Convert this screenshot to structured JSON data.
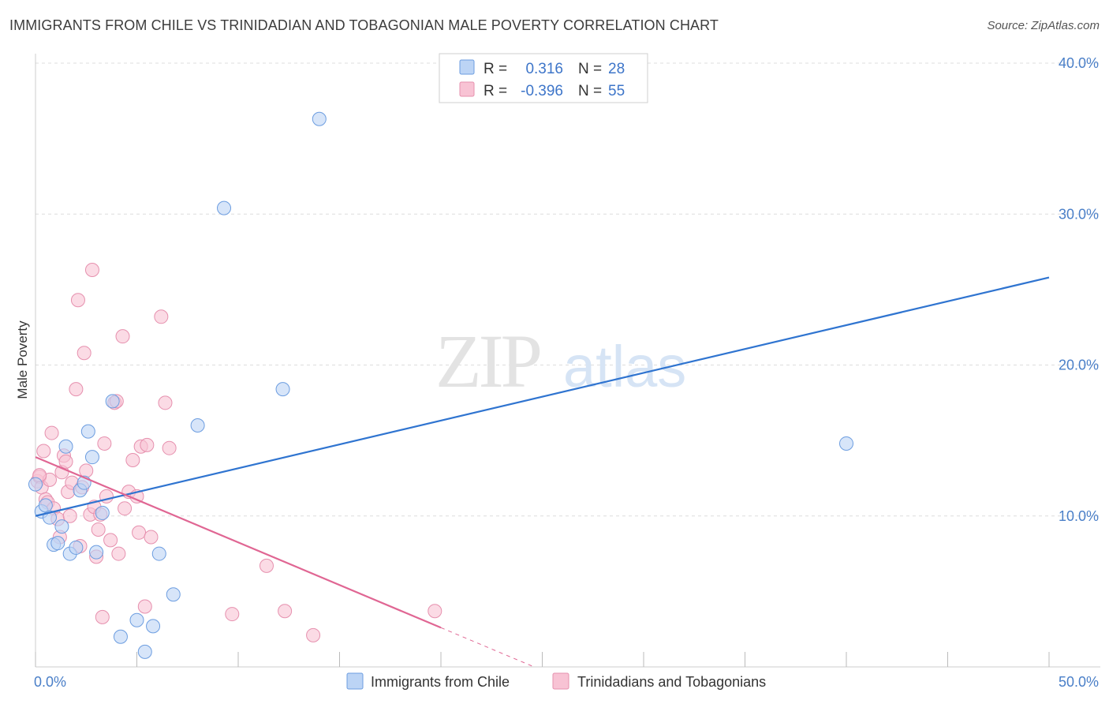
{
  "title": "IMMIGRANTS FROM CHILE VS TRINIDADIAN AND TOBAGONIAN MALE POVERTY CORRELATION CHART",
  "source": "Source: ZipAtlas.com",
  "watermark": {
    "zip": "ZIP",
    "atlas": "atlas"
  },
  "colors": {
    "blue_fill": "#bcd4f5",
    "blue_stroke": "#6c9de0",
    "blue_line": "#2f74d0",
    "pink_fill": "#f8c3d4",
    "pink_stroke": "#e690ae",
    "pink_line": "#e06693",
    "grid": "#dddddd",
    "axis_text": "#4a7fc8"
  },
  "chart_data": {
    "type": "scatter",
    "title": "IMMIGRANTS FROM CHILE VS TRINIDADIAN AND TOBAGONIAN MALE POVERTY CORRELATION CHART",
    "xlabel": "",
    "ylabel": "Male Poverty",
    "xlim": [
      0,
      50
    ],
    "ylim": [
      0,
      40
    ],
    "x_ticks": [
      {
        "value": 0,
        "label": "0.0%"
      },
      {
        "value": 50,
        "label": "50.0%"
      }
    ],
    "x_minor_ticks": [
      0,
      5,
      10,
      15,
      20,
      25,
      30,
      35,
      40,
      45,
      50
    ],
    "y_ticks": [
      {
        "value": 10,
        "label": "10.0%"
      },
      {
        "value": 20,
        "label": "20.0%"
      },
      {
        "value": 30,
        "label": "30.0%"
      },
      {
        "value": 40,
        "label": "40.0%"
      }
    ],
    "stats_box": [
      {
        "r_label": "R =",
        "r_value": "0.316",
        "n_label": "N =",
        "n_value": "28"
      },
      {
        "r_label": "R =",
        "r_value": "-0.396",
        "n_label": "N =",
        "n_value": "55"
      }
    ],
    "series": [
      {
        "name": "Immigrants from Chile",
        "color": "blue",
        "trend": {
          "x0": 0,
          "y0": 10.0,
          "x1": 50,
          "y1": 25.8,
          "dash_from_x": null
        },
        "points": [
          [
            0.0,
            12.1
          ],
          [
            0.3,
            10.3
          ],
          [
            0.5,
            10.7
          ],
          [
            0.7,
            9.9
          ],
          [
            0.9,
            8.1
          ],
          [
            1.1,
            8.2
          ],
          [
            1.3,
            9.3
          ],
          [
            1.5,
            14.6
          ],
          [
            1.7,
            7.5
          ],
          [
            2.0,
            7.9
          ],
          [
            2.2,
            11.7
          ],
          [
            2.4,
            12.2
          ],
          [
            2.6,
            15.6
          ],
          [
            2.8,
            13.9
          ],
          [
            3.0,
            7.6
          ],
          [
            3.3,
            10.2
          ],
          [
            3.8,
            17.6
          ],
          [
            4.2,
            2.0
          ],
          [
            5.0,
            3.1
          ],
          [
            5.4,
            1.0
          ],
          [
            5.8,
            2.7
          ],
          [
            6.1,
            7.5
          ],
          [
            6.8,
            4.8
          ],
          [
            8.0,
            16.0
          ],
          [
            9.3,
            30.4
          ],
          [
            12.2,
            18.4
          ],
          [
            14.0,
            36.3
          ],
          [
            40.0,
            14.8
          ]
        ]
      },
      {
        "name": "Trinidadians and Tobagonians",
        "color": "pink",
        "trend": {
          "x0": 0,
          "y0": 13.9,
          "x1": 20,
          "y1": 2.6,
          "dash_to_x": 24.6,
          "dash_to_y": 0.0
        },
        "points": [
          [
            0.1,
            12.3
          ],
          [
            0.2,
            12.6
          ],
          [
            0.3,
            11.9
          ],
          [
            0.4,
            14.3
          ],
          [
            0.5,
            11.1
          ],
          [
            0.6,
            10.9
          ],
          [
            0.7,
            12.4
          ],
          [
            0.8,
            15.5
          ],
          [
            0.9,
            10.5
          ],
          [
            1.1,
            9.8
          ],
          [
            1.3,
            12.9
          ],
          [
            1.4,
            14.0
          ],
          [
            1.5,
            13.6
          ],
          [
            1.6,
            11.6
          ],
          [
            1.7,
            10.0
          ],
          [
            1.8,
            12.2
          ],
          [
            2.0,
            18.4
          ],
          [
            2.1,
            24.3
          ],
          [
            2.2,
            8.0
          ],
          [
            2.3,
            11.9
          ],
          [
            2.4,
            20.8
          ],
          [
            2.5,
            13.0
          ],
          [
            2.7,
            10.1
          ],
          [
            2.8,
            26.3
          ],
          [
            2.9,
            10.6
          ],
          [
            3.0,
            7.3
          ],
          [
            3.1,
            9.1
          ],
          [
            3.2,
            10.1
          ],
          [
            3.3,
            3.3
          ],
          [
            3.4,
            14.8
          ],
          [
            3.5,
            11.3
          ],
          [
            3.7,
            8.4
          ],
          [
            3.9,
            17.5
          ],
          [
            4.1,
            7.5
          ],
          [
            4.3,
            21.9
          ],
          [
            4.4,
            10.5
          ],
          [
            4.6,
            11.6
          ],
          [
            4.8,
            13.7
          ],
          [
            5.0,
            11.3
          ],
          [
            5.1,
            8.9
          ],
          [
            5.2,
            14.6
          ],
          [
            5.4,
            4.0
          ],
          [
            5.5,
            14.7
          ],
          [
            5.7,
            8.6
          ],
          [
            6.2,
            23.2
          ],
          [
            6.4,
            17.5
          ],
          [
            6.6,
            14.5
          ],
          [
            9.7,
            3.5
          ],
          [
            11.4,
            6.7
          ],
          [
            12.3,
            3.7
          ],
          [
            13.7,
            2.1
          ],
          [
            19.7,
            3.7
          ],
          [
            0.2,
            12.7
          ],
          [
            1.2,
            8.6
          ],
          [
            4.0,
            17.6
          ]
        ]
      }
    ],
    "legend": [
      "Immigrants from Chile",
      "Trinidadians and Tobagonians"
    ],
    "legend_position": "bottom-center"
  }
}
